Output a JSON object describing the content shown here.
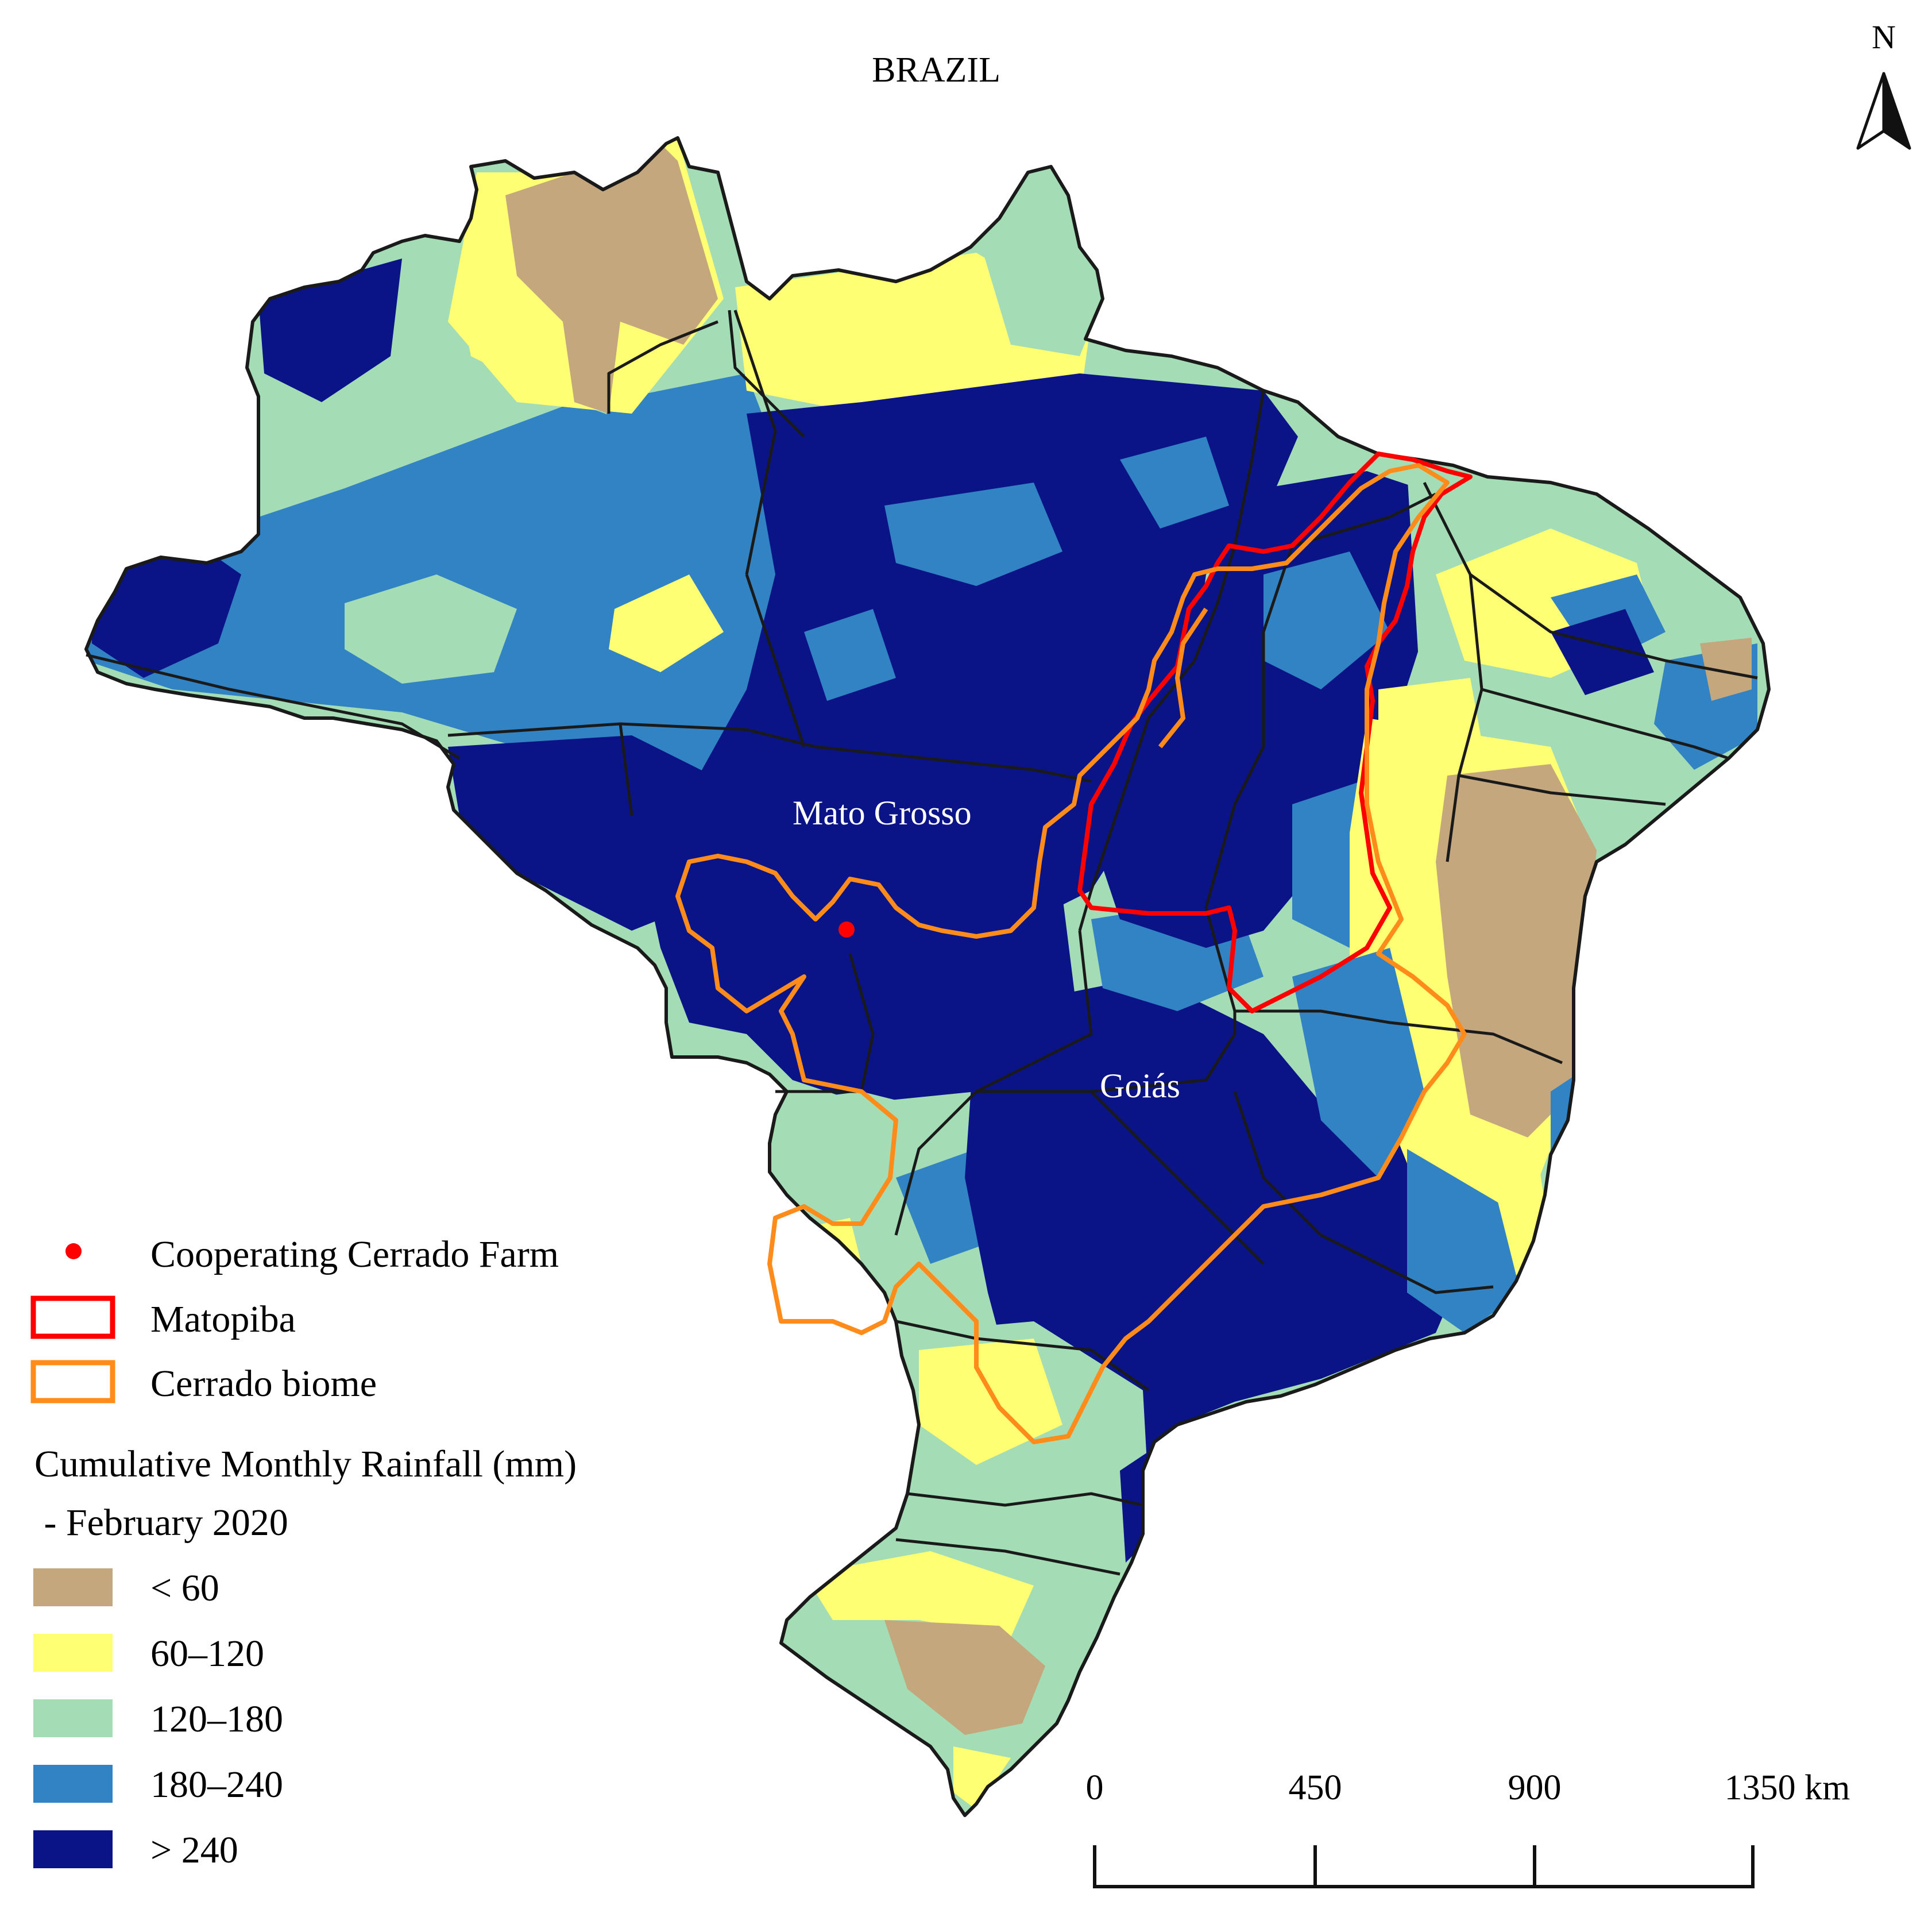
{
  "title": "BRAZIL",
  "north_arrow": {
    "label": "N",
    "icon": "north-arrow-icon"
  },
  "places": [
    {
      "id": "mato-grosso",
      "label": "Mato Grosso"
    },
    {
      "id": "goias",
      "label": "Goiás"
    }
  ],
  "legend": {
    "farm": {
      "label": "Cooperating Cerrado Farm",
      "color": "#ff0000"
    },
    "matopiba": {
      "label": "Matopiba",
      "color": "#ff0000"
    },
    "cerrado": {
      "label": "Cerrado biome",
      "color": "#ff8c1a"
    },
    "rainfall_title_line1": "Cumulative Monthly Rainfall (mm)",
    "rainfall_title_line2": " - February 2020",
    "classes": [
      {
        "label": "< 60",
        "color": "#c4a77d"
      },
      {
        "label": "60–120",
        "color": "#ffff73"
      },
      {
        "label": "120–180",
        "color": "#a3dcb5"
      },
      {
        "label": "180–240",
        "color": "#3283c3"
      },
      {
        "label": "> 240",
        "color": "#0b1487"
      }
    ]
  },
  "scale_bar": {
    "labels": [
      "0",
      "450",
      "900",
      "1350 km"
    ]
  },
  "colors": {
    "state_border": "#1a1a1a",
    "place_label": "#ffffff"
  }
}
